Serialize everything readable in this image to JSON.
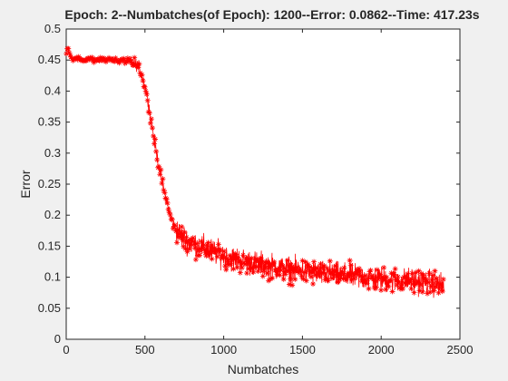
{
  "colors": {
    "series": "#ff0000",
    "axes": "#262626",
    "background": "#f0f0f0",
    "plot_area": "#ffffff"
  },
  "chart_data": {
    "type": "line",
    "title": "Epoch: 2--Numbatches(of Epoch): 1200--Error: 0.0862--Time: 417.23s",
    "xlabel": "Numbatches",
    "ylabel": "Error",
    "xlim": [
      0,
      2500
    ],
    "ylim": [
      0,
      0.5
    ],
    "xticks": [
      0,
      500,
      1000,
      1500,
      2000,
      2500
    ],
    "yticks": [
      0,
      0.05,
      0.1,
      0.15,
      0.2,
      0.25,
      0.3,
      0.35,
      0.4,
      0.45,
      0.5
    ],
    "xtick_labels": [
      "0",
      "500",
      "1000",
      "1500",
      "2000",
      "2500"
    ],
    "ytick_labels": [
      "0",
      "0.05",
      "0.1",
      "0.15",
      "0.2",
      "0.25",
      "0.3",
      "0.35",
      "0.4",
      "0.45",
      "0.5"
    ],
    "grid": false,
    "marker": "asterisk",
    "series": [
      {
        "x": [
          1,
          10,
          25,
          50,
          100,
          150,
          200,
          250,
          300,
          350,
          400,
          430,
          460,
          480,
          500,
          520,
          540,
          560,
          580,
          600,
          620,
          640,
          660,
          680,
          700,
          720,
          740,
          760,
          800,
          850,
          900,
          950,
          1000,
          1050,
          1100,
          1150,
          1200,
          1250,
          1300,
          1350,
          1400,
          1450,
          1500,
          1550,
          1600,
          1650,
          1700,
          1750,
          1800,
          1850,
          1900,
          1950,
          2000,
          2050,
          2100,
          2150,
          2200,
          2250,
          2300,
          2350,
          2400
        ],
        "y": [
          0.46,
          0.47,
          0.455,
          0.452,
          0.45,
          0.451,
          0.45,
          0.452,
          0.45,
          0.449,
          0.448,
          0.445,
          0.44,
          0.425,
          0.41,
          0.385,
          0.35,
          0.32,
          0.29,
          0.265,
          0.24,
          0.22,
          0.2,
          0.185,
          0.175,
          0.17,
          0.165,
          0.16,
          0.155,
          0.15,
          0.145,
          0.14,
          0.135,
          0.13,
          0.128,
          0.125,
          0.122,
          0.12,
          0.118,
          0.115,
          0.113,
          0.112,
          0.11,
          0.108,
          0.107,
          0.105,
          0.104,
          0.103,
          0.102,
          0.1,
          0.099,
          0.098,
          0.097,
          0.096,
          0.095,
          0.094,
          0.094,
          0.093,
          0.092,
          0.09,
          0.086
        ]
      }
    ]
  }
}
